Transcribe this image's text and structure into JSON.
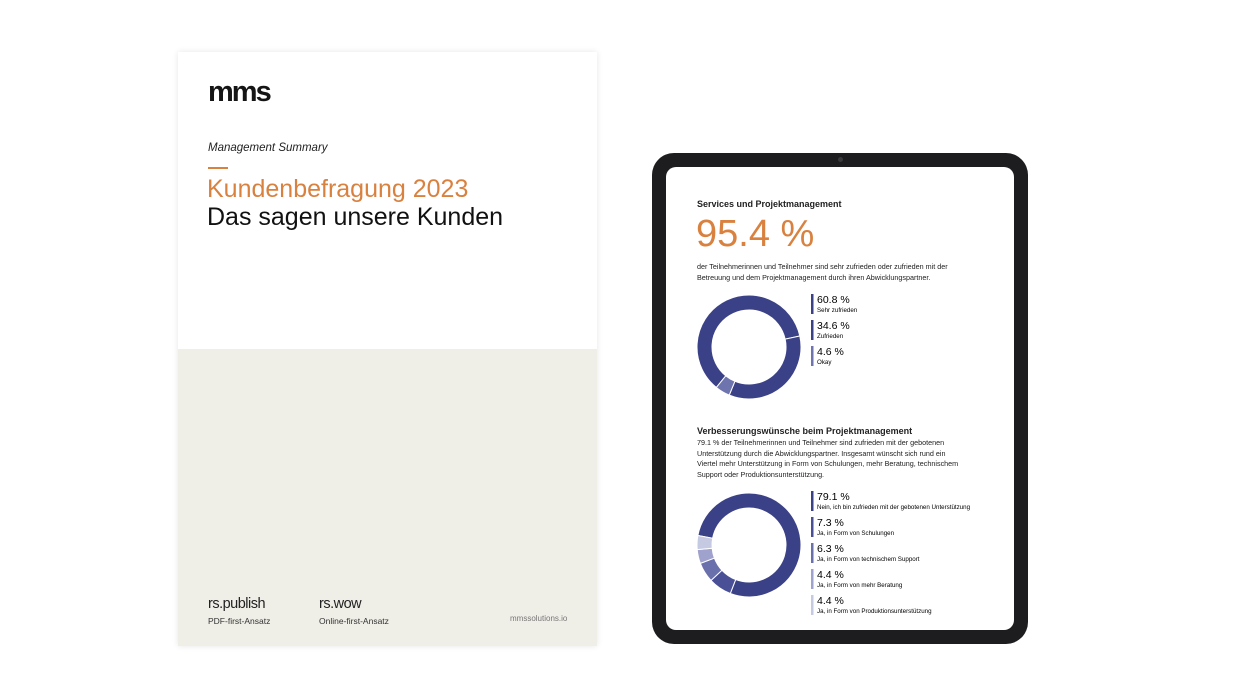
{
  "brochure": {
    "logo": "mms",
    "subtitle": "Management Summary",
    "title_line1": "Kundenbefragung 2023",
    "title_line2": "Das sagen unsere Kunden",
    "products": [
      {
        "name": "rs.publish",
        "desc": "PDF-first-Ansatz"
      },
      {
        "name": "rs.wow",
        "desc": "Online-first-Ansatz"
      }
    ],
    "website": "mmssolutions.io"
  },
  "tablet": {
    "section1": {
      "heading": "Services und Projektmanagement",
      "big_number": "95.4 %",
      "text_lines": [
        "der Teilnehmerinnen und Teilnehmer sind sehr zufrieden oder zufrieden mit der",
        "Betreuung und dem Projektmanagement durch ihren Abwicklungspartner."
      ]
    },
    "section2": {
      "heading": "Verbesserungswünsche beim Projektmanagement",
      "text_lines": [
        "79.1 % der Teilnehmerinnen und Teilnehmer sind zufrieden mit der gebotenen",
        "Unterstützung durch die Abwicklungspartner. Insgesamt wünscht sich rund ein",
        "Viertel mehr Unterstützung in Form von Schulungen, mehr Beratung, technischem",
        "Support oder Produktionsunterstützung."
      ]
    }
  },
  "colors": {
    "accent": "#d9813f",
    "navy": "#3b4187",
    "tablet_frame": "#1d1d1f",
    "brochure_bottom": "#efeee7"
  },
  "chart_data": [
    {
      "type": "pie",
      "donut": true,
      "categories": [
        "Sehr zufrieden",
        "Zufrieden",
        "Okay"
      ],
      "values": [
        60.8,
        34.6,
        4.6
      ],
      "value_labels": [
        "60.8 %",
        "34.6 %",
        "4.6 %"
      ],
      "colors": [
        "#3b4187",
        "#3b4187",
        "#6e74ad"
      ],
      "legend": "right"
    },
    {
      "type": "pie",
      "donut": true,
      "categories": [
        "Nein, ich bin zufrieden mit der gebotenen Unterstützung",
        "Ja, in Form von Schulungen",
        "Ja, in Form von technischem Support",
        "Ja, in Form von mehr Beratung",
        "Ja, in Form von Produktionsunterstützung"
      ],
      "values": [
        79.1,
        7.3,
        6.3,
        4.4,
        4.4
      ],
      "value_labels": [
        "79.1 %",
        "7.3 %",
        "6.3 %",
        "4.4 %",
        "4.4 %"
      ],
      "colors": [
        "#3b4187",
        "#4a5096",
        "#6a70ab",
        "#9ea2cc",
        "#c6c9e2"
      ],
      "legend": "right"
    }
  ]
}
